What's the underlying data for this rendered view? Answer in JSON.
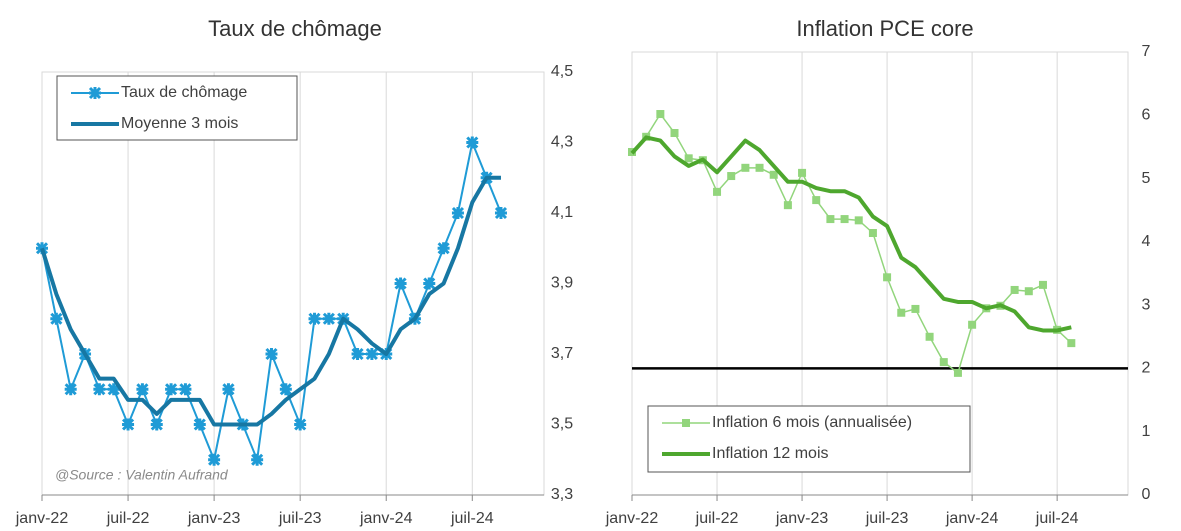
{
  "chart_data": [
    {
      "type": "line",
      "title": "Taux de chômage",
      "categories": [
        "janv-22",
        null,
        null,
        null,
        null,
        null,
        "juil-22",
        null,
        null,
        null,
        null,
        null,
        "janv-23",
        null,
        null,
        null,
        null,
        null,
        "juil-23",
        null,
        null,
        null,
        null,
        null,
        "janv-24",
        null,
        null,
        null,
        null,
        null,
        "juil-24",
        null,
        null
      ],
      "series": [
        {
          "name": "Taux de chômage",
          "color": "#1f9bd6",
          "marker": "x",
          "linewidth": 2,
          "values": [
            4.0,
            3.8,
            3.6,
            3.7,
            3.6,
            3.6,
            3.5,
            3.6,
            3.5,
            3.6,
            3.6,
            3.5,
            3.4,
            3.6,
            3.5,
            3.4,
            3.7,
            3.6,
            3.5,
            3.8,
            3.8,
            3.8,
            3.7,
            3.7,
            3.7,
            3.9,
            3.8,
            3.9,
            4.0,
            4.1,
            4.3,
            4.2,
            4.1
          ]
        },
        {
          "name": "Moyenne 3 mois",
          "color": "#1777a3",
          "linewidth": 4,
          "values": [
            4.0,
            3.87,
            3.77,
            3.7,
            3.63,
            3.63,
            3.57,
            3.57,
            3.53,
            3.57,
            3.57,
            3.57,
            3.5,
            3.5,
            3.5,
            3.5,
            3.53,
            3.57,
            3.6,
            3.63,
            3.7,
            3.8,
            3.77,
            3.73,
            3.7,
            3.77,
            3.8,
            3.87,
            3.9,
            4.0,
            4.13,
            4.2,
            4.2
          ]
        }
      ],
      "ylim": [
        3.3,
        4.5
      ],
      "yticks": [
        {
          "value": 3.3,
          "label": "3,3"
        },
        {
          "value": 3.5,
          "label": "3,5"
        },
        {
          "value": 3.7,
          "label": "3,7"
        },
        {
          "value": 3.9,
          "label": "3,9"
        },
        {
          "value": 4.1,
          "label": "4,1"
        },
        {
          "value": 4.3,
          "label": "4,3"
        },
        {
          "value": 4.5,
          "label": "4,5"
        }
      ],
      "legend": "upper left",
      "grid": true,
      "annotation": "@Source : Valentin Aufrand"
    },
    {
      "type": "line",
      "title": "Inflation PCE core",
      "categories": [
        "janv-22",
        null,
        null,
        null,
        null,
        null,
        "juil-22",
        null,
        null,
        null,
        null,
        null,
        "janv-23",
        null,
        null,
        null,
        null,
        null,
        "juil-23",
        null,
        null,
        null,
        null,
        null,
        "janv-24",
        null,
        null,
        null,
        null,
        null,
        "juil-24",
        null
      ],
      "series": [
        {
          "name": "Inflation 6 mois (annualisée)",
          "color": "#92d57c",
          "marker": "square",
          "linewidth": 1.5,
          "values": [
            5.42,
            5.66,
            6.02,
            5.72,
            5.32,
            5.29,
            4.79,
            5.04,
            5.17,
            5.17,
            5.06,
            4.58,
            5.09,
            4.66,
            4.36,
            4.36,
            4.34,
            4.14,
            3.44,
            2.88,
            2.94,
            2.5,
            2.1,
            1.93,
            2.69,
            2.95,
            2.99,
            3.24,
            3.22,
            3.32,
            2.61,
            2.4
          ]
        },
        {
          "name": "Inflation 12 mois",
          "color": "#4ea72e",
          "linewidth": 4,
          "values": [
            5.4,
            5.65,
            5.6,
            5.35,
            5.2,
            5.3,
            5.1,
            5.35,
            5.6,
            5.45,
            5.2,
            4.95,
            4.95,
            4.85,
            4.8,
            4.8,
            4.7,
            4.4,
            4.25,
            3.75,
            3.6,
            3.35,
            3.1,
            3.05,
            3.05,
            2.95,
            3.0,
            2.9,
            2.65,
            2.6,
            2.6,
            2.65
          ]
        }
      ],
      "ylim": [
        0,
        7
      ],
      "yticks": [
        0,
        1,
        2,
        3,
        4,
        5,
        6,
        7
      ],
      "reference_line": 2,
      "legend": "lower left",
      "grid": true
    }
  ]
}
